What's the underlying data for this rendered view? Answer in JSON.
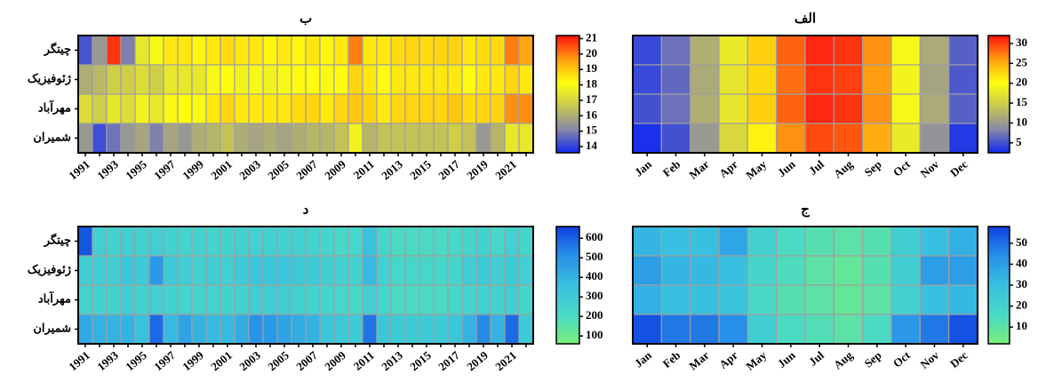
{
  "chart_data": [
    {
      "type": "heatmap",
      "title": "ب",
      "x_categories": [
        "1991",
        null,
        "1993",
        null,
        "1995",
        null,
        "1997",
        null,
        "1999",
        null,
        "2001",
        null,
        "2003",
        null,
        "2005",
        null,
        "2007",
        null,
        "2009",
        null,
        "2011",
        null,
        "2013",
        null,
        "2015",
        null,
        "2017",
        null,
        "2019",
        null,
        "2021",
        null
      ],
      "y_categories": [
        "چیتگر",
        "ژئوفیزیک",
        "مهرآباد",
        "شمیران"
      ],
      "z": [
        [
          14.3,
          15.5,
          20.8,
          15,
          17.5,
          18,
          18.5,
          18.5,
          18.3,
          18.5,
          18.7,
          18.5,
          18.5,
          18.3,
          18.5,
          18.3,
          18.5,
          18.3,
          18.5,
          20,
          18.5,
          18.5,
          18.7,
          18.8,
          18.7,
          18.8,
          18.8,
          18.5,
          18.7,
          18.7,
          20,
          19.5
        ],
        [
          16,
          16.3,
          16.8,
          16.8,
          17.2,
          16.8,
          17.5,
          17.5,
          17.5,
          18,
          18.2,
          17.8,
          18,
          17.8,
          18,
          18.2,
          18.2,
          18,
          18.2,
          18.8,
          18.5,
          18.2,
          18.5,
          18.5,
          18.5,
          18.5,
          18.5,
          18.2,
          18.5,
          18.5,
          18.8,
          18.5
        ],
        [
          17.2,
          16.8,
          17.5,
          17.2,
          17.8,
          17.5,
          18,
          18.2,
          18,
          18.5,
          18.8,
          18.5,
          18.5,
          18.5,
          18.5,
          18.7,
          18.8,
          18.5,
          18.8,
          19,
          18.8,
          18.5,
          18.8,
          18.8,
          18.8,
          18.8,
          19,
          18.7,
          18.8,
          18.8,
          19.8,
          19.8
        ],
        [
          15.5,
          14.2,
          14.8,
          15.5,
          15.8,
          15,
          15.8,
          15.5,
          16,
          16.2,
          16.5,
          16,
          15.8,
          16,
          15.8,
          16,
          16.2,
          16.2,
          16.5,
          17.8,
          16.2,
          16.5,
          16.5,
          16.5,
          16.5,
          16.5,
          16.8,
          16.5,
          15.5,
          16.2,
          17.5,
          17.5
        ]
      ],
      "zlim": [
        13.6,
        21.2
      ],
      "zticks": [
        14,
        15,
        16,
        17,
        18,
        19,
        20,
        21
      ],
      "colorscale": [
        "#1028f0",
        "#8888a8",
        "#c8c850",
        "#ffff10",
        "#ff9a10",
        "#ff1010"
      ]
    },
    {
      "type": "heatmap",
      "title": "الف",
      "x_categories": [
        "Jan",
        "Feb",
        "Mar",
        "Apr",
        "May",
        "Jun",
        "Jul",
        "Aug",
        "Sep",
        "Oct",
        "Nov",
        "Dec"
      ],
      "z": [
        [
          4.5,
          7,
          12,
          18,
          23,
          28.5,
          31,
          30.5,
          26.5,
          19.5,
          11.5,
          6
        ],
        [
          4.5,
          6.5,
          11.5,
          17.5,
          22.5,
          28,
          30.5,
          30,
          26,
          19,
          11,
          5.5
        ],
        [
          5,
          7,
          12,
          17.5,
          23,
          28.5,
          31,
          30.5,
          26.5,
          19.5,
          11.5,
          6
        ],
        [
          3,
          5,
          10,
          16,
          21,
          26.5,
          29.5,
          29,
          25,
          18,
          9.5,
          3.5
        ]
      ],
      "zlim": [
        2.5,
        32
      ],
      "zticks": [
        5,
        10,
        15,
        20,
        25,
        30
      ],
      "colorscale": [
        "#1028f0",
        "#8888a8",
        "#c8c850",
        "#ffff10",
        "#ff9a10",
        "#ff1010"
      ]
    },
    {
      "type": "heatmap",
      "title": "د",
      "x_categories": [
        "1991",
        null,
        "1993",
        null,
        "1995",
        null,
        "1997",
        null,
        "1999",
        null,
        "2001",
        null,
        "2003",
        null,
        "2005",
        null,
        "2007",
        null,
        "2009",
        null,
        "2011",
        null,
        "2013",
        null,
        "2015",
        null,
        "2017",
        null,
        "2019",
        null,
        "2021",
        null
      ],
      "y_categories": [
        "چیتگر",
        "ژئوفیزیک",
        "مهرآباد",
        "شمیران"
      ],
      "z": [
        [
          620,
          270,
          260,
          270,
          260,
          270,
          250,
          240,
          250,
          240,
          250,
          260,
          260,
          260,
          260,
          260,
          250,
          230,
          210,
          220,
          350,
          230,
          200,
          200,
          200,
          200,
          210,
          230,
          250,
          220,
          260,
          230
        ],
        [
          280,
          280,
          280,
          330,
          300,
          480,
          300,
          280,
          260,
          280,
          270,
          300,
          330,
          330,
          330,
          310,
          290,
          270,
          260,
          250,
          380,
          260,
          220,
          220,
          220,
          220,
          230,
          280,
          300,
          280,
          300,
          270
        ],
        [
          250,
          250,
          250,
          280,
          260,
          270,
          250,
          240,
          240,
          240,
          250,
          260,
          280,
          280,
          280,
          260,
          250,
          230,
          220,
          220,
          270,
          230,
          200,
          200,
          200,
          200,
          220,
          240,
          260,
          250,
          270,
          230
        ],
        [
          430,
          400,
          400,
          400,
          350,
          580,
          380,
          450,
          400,
          380,
          380,
          420,
          500,
          480,
          450,
          420,
          400,
          320,
          310,
          300,
          560,
          320,
          290,
          290,
          300,
          300,
          320,
          400,
          520,
          400,
          580,
          300
        ]
      ],
      "zlim": [
        60,
        660
      ],
      "zticks": [
        100,
        200,
        300,
        400,
        500,
        600
      ],
      "colorscale": [
        "#78ee78",
        "#48d8c8",
        "#38c0e0",
        "#2890e8",
        "#1040e0"
      ]
    },
    {
      "type": "heatmap",
      "title": "ج",
      "x_categories": [
        "Jan",
        "Feb",
        "Mar",
        "Apr",
        "May",
        "Jun",
        "Jul",
        "Aug",
        "Sep",
        "Oct",
        "Nov",
        "Dec"
      ],
      "z": [
        [
          33,
          30,
          30,
          38,
          20,
          15,
          12,
          10,
          12,
          22,
          30,
          35
        ],
        [
          40,
          33,
          32,
          30,
          18,
          14,
          10,
          8,
          12,
          22,
          40,
          40
        ],
        [
          35,
          30,
          30,
          28,
          16,
          12,
          10,
          8,
          10,
          20,
          30,
          32
        ],
        [
          55,
          48,
          48,
          44,
          22,
          15,
          13,
          10,
          15,
          42,
          48,
          55
        ]
      ],
      "zlim": [
        2,
        58
      ],
      "zticks": [
        10,
        20,
        30,
        40,
        50
      ],
      "colorscale": [
        "#78ee78",
        "#48d8c8",
        "#38c0e0",
        "#2890e8",
        "#1040e0"
      ]
    }
  ]
}
